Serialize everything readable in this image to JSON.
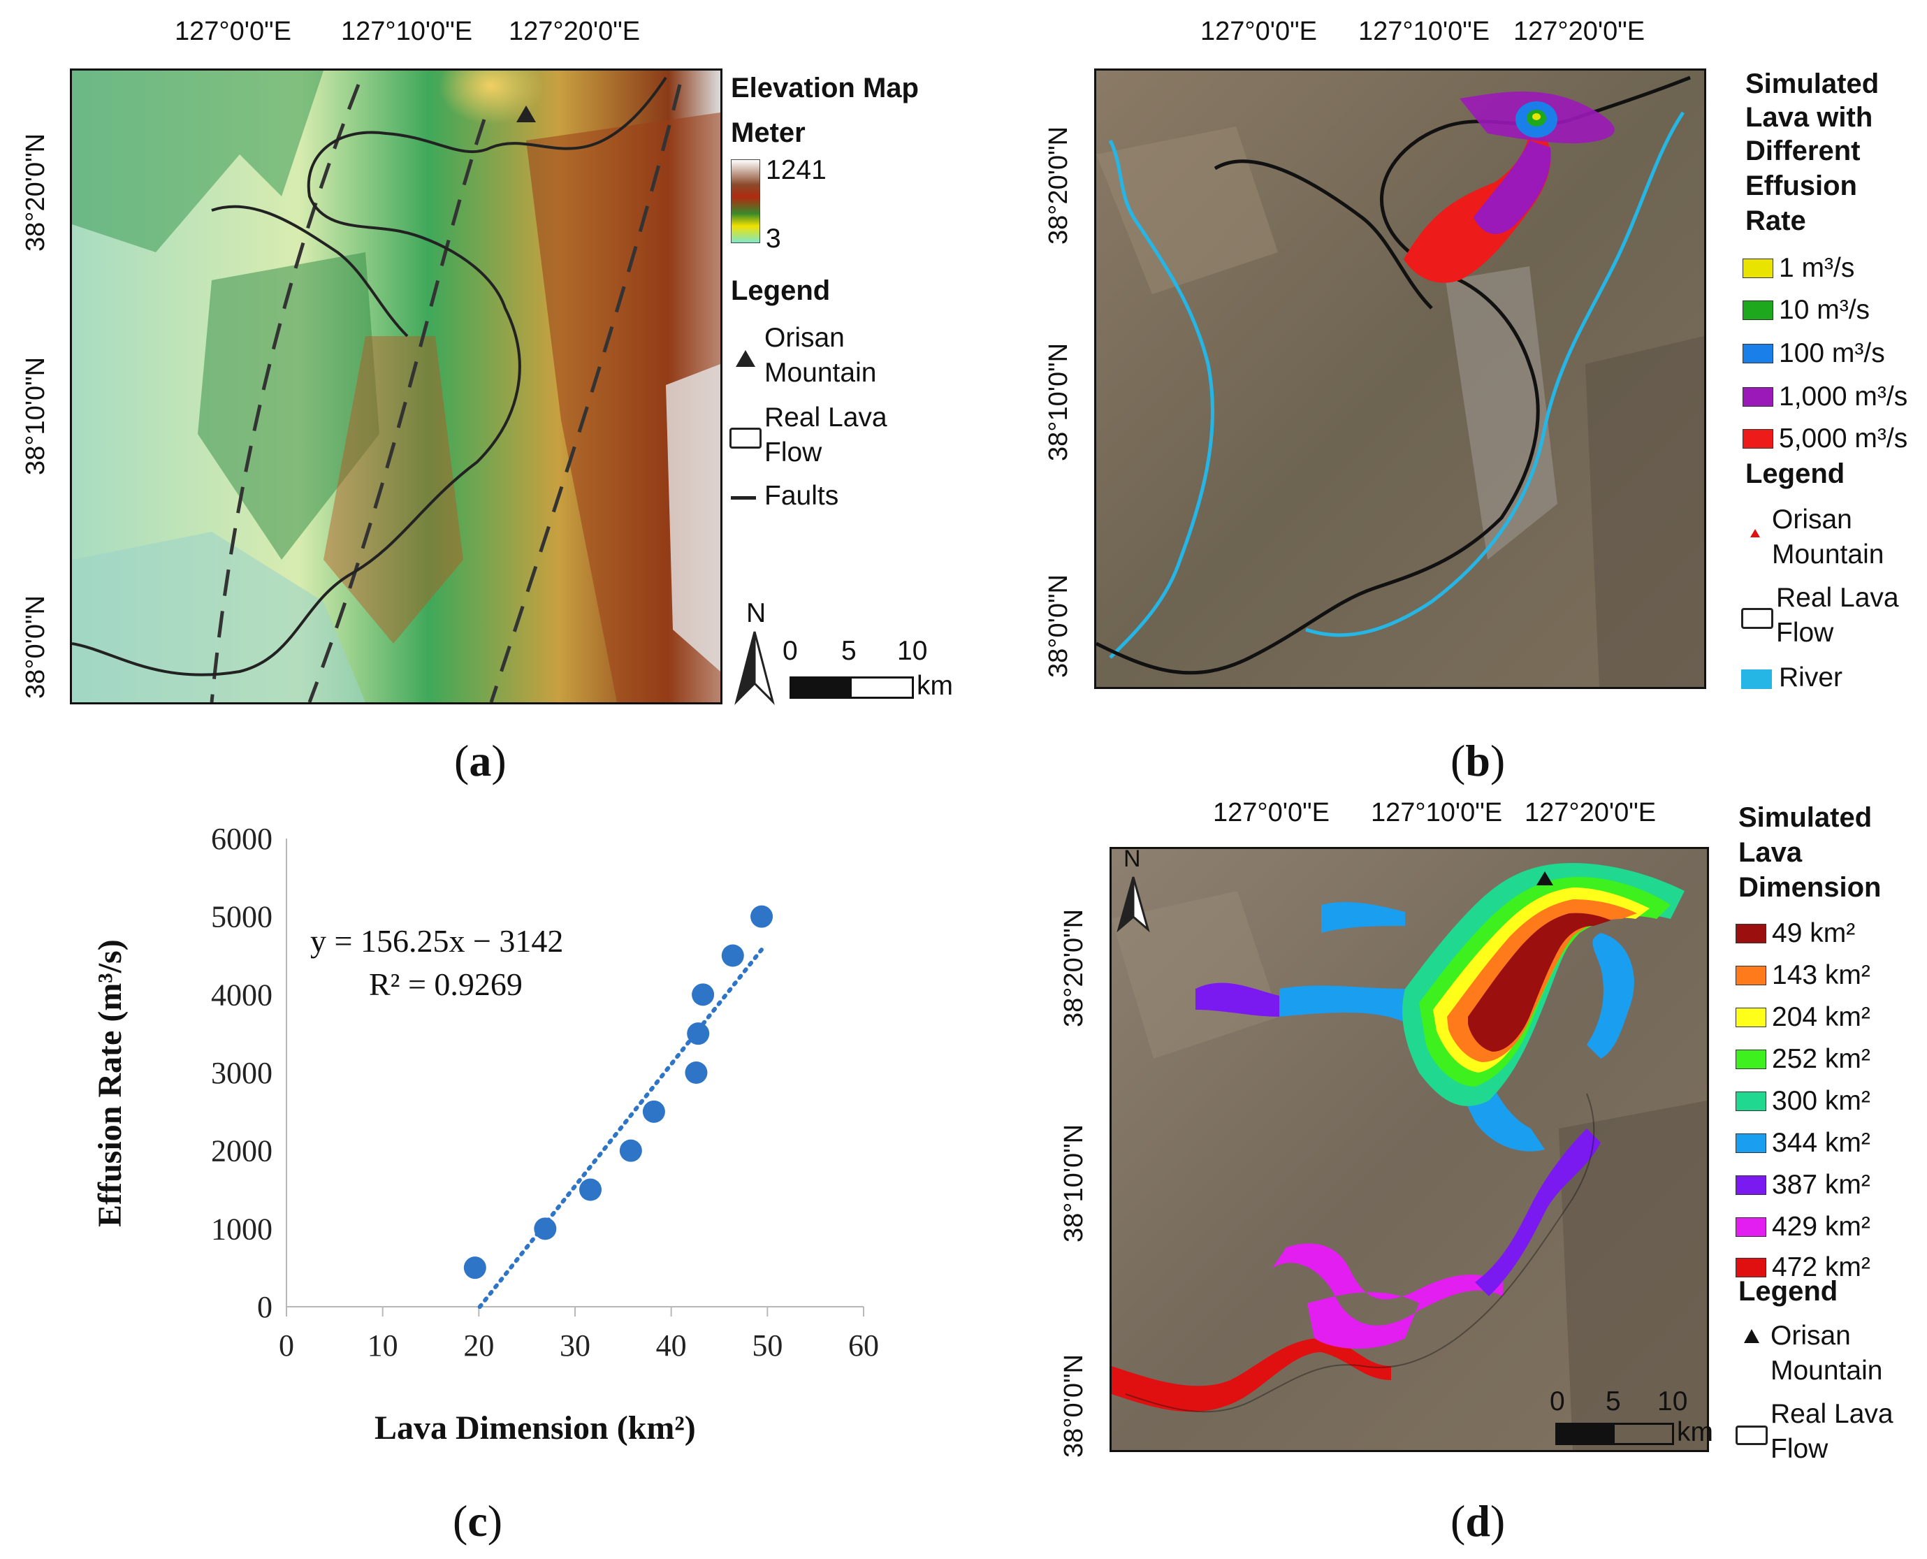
{
  "panel_a": {
    "caption_letter": "a",
    "top_ticks": [
      "127°0'0\"E",
      "127°10'0\"E",
      "127°20'0\"E"
    ],
    "left_ticks": [
      "38°20'0\"N",
      "38°10'0\"N",
      "38°0'0\"N"
    ],
    "legend_title": "Elevation Map",
    "unit_label": "Meter",
    "elev_max": "1241",
    "elev_min": "3",
    "legend_heading": "Legend",
    "legend_items": [
      {
        "icon": "triangle-icon",
        "label_lines": [
          "Orisan",
          "Mountain"
        ]
      },
      {
        "icon": "polygon-outline-icon",
        "label_lines": [
          "Real Lava",
          "Flow"
        ]
      },
      {
        "icon": "line-icon",
        "label_lines": [
          "Faults"
        ]
      }
    ],
    "north_label": "N",
    "scale_ticks": [
      "0",
      "5",
      "10"
    ],
    "scale_unit": "km"
  },
  "panel_b": {
    "caption_letter": "b",
    "top_ticks": [
      "127°0'0\"E",
      "127°10'0\"E",
      "127°20'0\"E"
    ],
    "left_ticks": [
      "38°20'0\"N",
      "38°10'0\"N",
      "38°0'0\"N"
    ],
    "legend_title_lines": [
      "Simulated",
      "Lava with",
      "Different",
      "Effusion",
      "Rate"
    ],
    "rate_items": [
      {
        "label": "1 m³/s",
        "color": "#e8e400"
      },
      {
        "label": "10 m³/s",
        "color": "#1ea81e"
      },
      {
        "label": "100 m³/s",
        "color": "#1a7fe8"
      },
      {
        "label": "1,000 m³/s",
        "color": "#9b19b8"
      },
      {
        "label": "5,000 m³/s",
        "color": "#ee1b1b"
      }
    ],
    "legend_heading": "Legend",
    "legend_items": [
      {
        "icon": "triangle-icon",
        "label_lines": [
          "Orisan",
          "Mountain"
        ]
      },
      {
        "icon": "polygon-outline-icon",
        "label_lines": [
          "Real Lava",
          "Flow"
        ]
      },
      {
        "icon": "river-swatch-icon",
        "label_lines": [
          "River"
        ]
      }
    ]
  },
  "panel_c": {
    "caption_letter": "c",
    "equation": "y = 156.25x − 3142",
    "r2": "R² = 0.9269"
  },
  "chart_data": {
    "type": "scatter",
    "xlabel": "Lava Dimension (km²)",
    "ylabel": "Effusion Rate (m³/s)",
    "xlim": [
      0,
      60
    ],
    "ylim": [
      0,
      6000
    ],
    "xticks": [
      0,
      10,
      20,
      30,
      40,
      50,
      60
    ],
    "yticks": [
      0,
      1000,
      2000,
      3000,
      4000,
      5000,
      6000
    ],
    "grid": "none",
    "series": [
      {
        "x": [
          19.6,
          26.9,
          31.6,
          35.8,
          38.2,
          42.6,
          42.8,
          43.3,
          46.4,
          49.4
        ],
        "y": [
          500,
          1000,
          1500,
          2000,
          2500,
          3000,
          3500,
          4000,
          4500,
          5000
        ],
        "color": "#2e75c8"
      }
    ],
    "trendline": {
      "slope": 156.25,
      "intercept": -3142,
      "x_from": 20.1,
      "x_to": 49.4,
      "style": "dotted",
      "color": "#2e75c8"
    }
  },
  "panel_d": {
    "caption_letter": "d",
    "top_ticks": [
      "127°0'0\"E",
      "127°10'0\"E",
      "127°20'0\"E"
    ],
    "left_ticks": [
      "38°20'0\"N",
      "38°10'0\"N",
      "38°0'0\"N"
    ],
    "legend_title_lines": [
      "Simulated",
      "Lava",
      "Dimension"
    ],
    "dim_items": [
      {
        "label": "49 km²",
        "color": "#9b0f0f"
      },
      {
        "label": "143 km²",
        "color": "#ff7a1a"
      },
      {
        "label": "204 km²",
        "color": "#ffff1a"
      },
      {
        "label": "252 km²",
        "color": "#3ef01e"
      },
      {
        "label": "300 km²",
        "color": "#20d890"
      },
      {
        "label": "344 km²",
        "color": "#1a9ef0"
      },
      {
        "label": "387 km²",
        "color": "#7a1af0"
      },
      {
        "label": "429 km²",
        "color": "#e21ef0"
      },
      {
        "label": "472 km²",
        "color": "#e01010"
      }
    ],
    "legend_heading": "Legend",
    "legend_items": [
      {
        "icon": "triangle-icon",
        "label_lines": [
          "Orisan",
          "Mountain"
        ]
      },
      {
        "icon": "polygon-outline-icon",
        "label_lines": [
          "Real Lava",
          "Flow"
        ]
      }
    ],
    "north_label": "N",
    "scale_ticks": [
      "0",
      "5",
      "10"
    ],
    "scale_unit": "km"
  }
}
